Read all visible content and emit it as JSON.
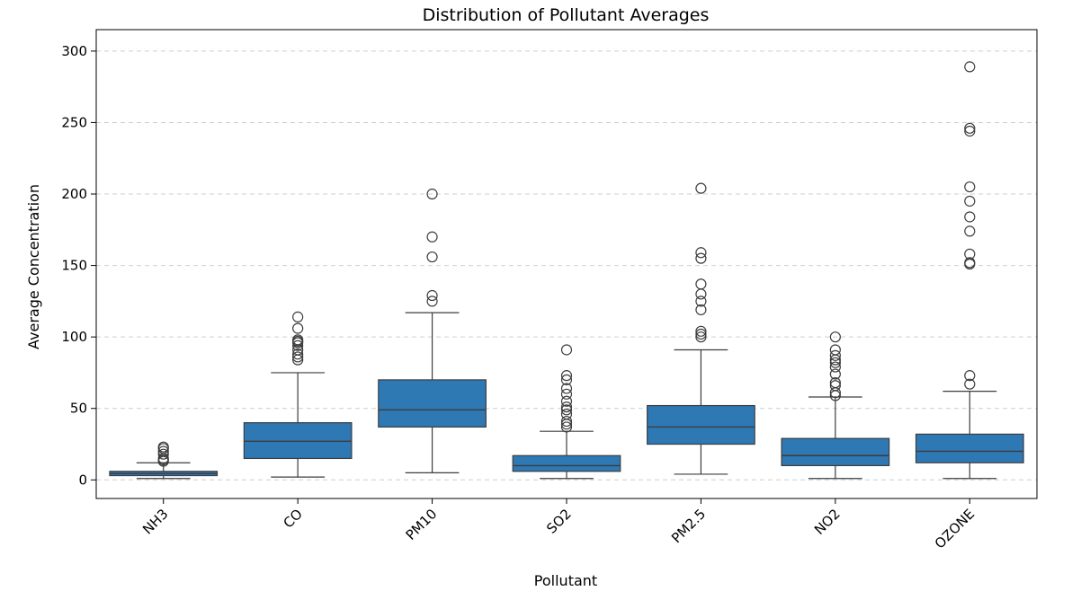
{
  "chart_data": {
    "type": "box",
    "title": "Distribution of Pollutant Averages",
    "xlabel": "Pollutant",
    "ylabel": "Average Concentration",
    "ylim": [
      -13,
      315
    ],
    "yticks": [
      0,
      50,
      100,
      150,
      200,
      250,
      300
    ],
    "grid": "y-dashed",
    "box_color": "#2e78b4",
    "categories": [
      "NH3",
      "CO",
      "PM10",
      "SO2",
      "PM2.5",
      "NO2",
      "OZONE"
    ],
    "boxes": [
      {
        "name": "NH3",
        "whisker_low": 1,
        "q1": 3,
        "median": 4.5,
        "q3": 6,
        "whisker_high": 12,
        "outliers": [
          13,
          14,
          15,
          18,
          20,
          22,
          23
        ]
      },
      {
        "name": "CO",
        "whisker_low": 2,
        "q1": 15,
        "median": 27,
        "q3": 40,
        "whisker_high": 75,
        "outliers": [
          84,
          86,
          88,
          91,
          94,
          96,
          97,
          98,
          106,
          114
        ]
      },
      {
        "name": "PM10",
        "whisker_low": 5,
        "q1": 37,
        "median": 49,
        "q3": 70,
        "whisker_high": 117,
        "outliers": [
          125,
          129,
          156,
          170,
          200
        ]
      },
      {
        "name": "SO2",
        "whisker_low": 1,
        "q1": 6,
        "median": 10,
        "q3": 17,
        "whisker_high": 34,
        "outliers": [
          37,
          39,
          41,
          46,
          49,
          51,
          55,
          60,
          64,
          70,
          73,
          91
        ]
      },
      {
        "name": "PM2.5",
        "whisker_low": 4,
        "q1": 25,
        "median": 37,
        "q3": 52,
        "whisker_high": 91,
        "outliers": [
          100,
          102,
          104,
          119,
          125,
          130,
          137,
          155,
          159,
          204
        ]
      },
      {
        "name": "NO2",
        "whisker_low": 1,
        "q1": 10,
        "median": 17,
        "q3": 29,
        "whisker_high": 58,
        "outliers": [
          59,
          61,
          66,
          68,
          74,
          79,
          82,
          84,
          87,
          91,
          100
        ]
      },
      {
        "name": "OZONE",
        "whisker_low": 1,
        "q1": 12,
        "median": 20,
        "q3": 32,
        "whisker_high": 62,
        "outliers": [
          67,
          73,
          151,
          152,
          158,
          174,
          184,
          195,
          205,
          244,
          246,
          289
        ]
      }
    ]
  }
}
